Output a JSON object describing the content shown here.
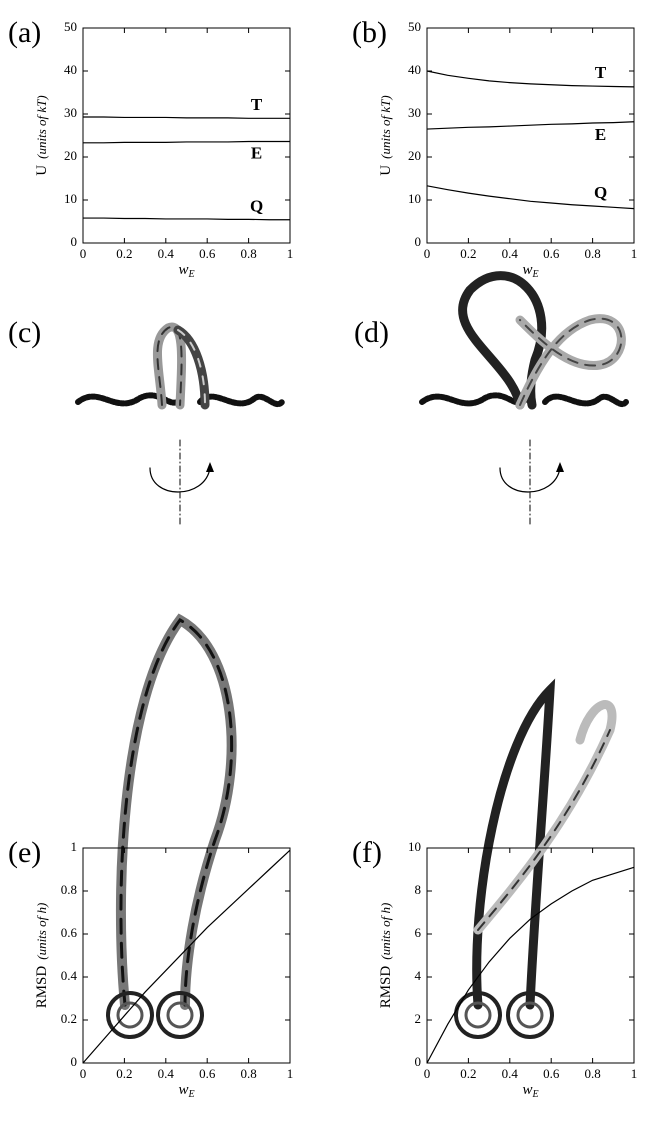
{
  "chart_data": [
    {
      "type": "line",
      "panel": "(a)",
      "ylabel": "U",
      "ylabel_unit": "(units of kT)",
      "xlabel": "w",
      "xlabel_sub": "E",
      "x": [
        0,
        0.1,
        0.2,
        0.3,
        0.4,
        0.5,
        0.6,
        0.7,
        0.8,
        0.9,
        1
      ],
      "xlim": [
        0,
        1
      ],
      "xticks": [
        0,
        0.2,
        0.4,
        0.6,
        0.8,
        1
      ],
      "ylim": [
        0,
        50
      ],
      "yticks": [
        0,
        10,
        20,
        30,
        40,
        50
      ],
      "series": [
        {
          "name": "T",
          "color": "#000000",
          "values": [
            29.3,
            29.3,
            29.2,
            29.2,
            29.2,
            29.1,
            29.1,
            29.1,
            29.0,
            29.0,
            29.0
          ]
        },
        {
          "name": "E",
          "color": "#000000",
          "values": [
            23.3,
            23.3,
            23.4,
            23.4,
            23.4,
            23.5,
            23.5,
            23.5,
            23.6,
            23.6,
            23.6
          ]
        },
        {
          "name": "Q",
          "color": "#000000",
          "values": [
            5.8,
            5.8,
            5.7,
            5.7,
            5.6,
            5.6,
            5.6,
            5.5,
            5.5,
            5.4,
            5.4
          ]
        }
      ]
    },
    {
      "type": "line",
      "panel": "(b)",
      "ylabel": "U",
      "ylabel_unit": "(units of kT)",
      "xlabel": "w",
      "xlabel_sub": "E",
      "x": [
        0,
        0.1,
        0.2,
        0.3,
        0.4,
        0.5,
        0.6,
        0.7,
        0.8,
        0.9,
        1
      ],
      "xlim": [
        0,
        1
      ],
      "xticks": [
        0,
        0.2,
        0.4,
        0.6,
        0.8,
        1
      ],
      "ylim": [
        0,
        50
      ],
      "yticks": [
        0,
        10,
        20,
        30,
        40,
        50
      ],
      "series": [
        {
          "name": "T",
          "color": "#000000",
          "values": [
            40.0,
            39.0,
            38.3,
            37.7,
            37.3,
            37.0,
            36.8,
            36.6,
            36.5,
            36.4,
            36.3
          ]
        },
        {
          "name": "E",
          "color": "#000000",
          "values": [
            26.5,
            26.7,
            26.9,
            27.0,
            27.2,
            27.4,
            27.6,
            27.7,
            27.9,
            28.0,
            28.2
          ]
        },
        {
          "name": "Q",
          "color": "#000000",
          "values": [
            13.3,
            12.4,
            11.6,
            10.9,
            10.3,
            9.7,
            9.3,
            8.9,
            8.6,
            8.3,
            8.0
          ]
        }
      ]
    },
    {
      "type": "line",
      "panel": "(e)",
      "ylabel": "RMSD",
      "ylabel_unit": "(units of h)",
      "xlabel": "w",
      "xlabel_sub": "E",
      "x": [
        0,
        0.1,
        0.2,
        0.3,
        0.4,
        0.5,
        0.6,
        0.7,
        0.8,
        0.9,
        1
      ],
      "xlim": [
        0,
        1
      ],
      "xticks": [
        0,
        0.2,
        0.4,
        0.6,
        0.8,
        1
      ],
      "ylim": [
        0,
        1
      ],
      "yticks": [
        0,
        0.2,
        0.4,
        0.6,
        0.8,
        1
      ],
      "series": [
        {
          "name": "RMSD",
          "color": "#000000",
          "values": [
            0,
            0.11,
            0.22,
            0.33,
            0.43,
            0.53,
            0.63,
            0.72,
            0.81,
            0.9,
            0.99
          ]
        }
      ]
    },
    {
      "type": "line",
      "panel": "(f)",
      "ylabel": "RMSD",
      "ylabel_unit": "(units of h)",
      "xlabel": "w",
      "xlabel_sub": "E",
      "x": [
        0,
        0.1,
        0.2,
        0.3,
        0.4,
        0.5,
        0.6,
        0.7,
        0.8,
        0.9,
        1
      ],
      "xlim": [
        0,
        1
      ],
      "xticks": [
        0,
        0.2,
        0.4,
        0.6,
        0.8,
        1
      ],
      "ylim": [
        0,
        10
      ],
      "yticks": [
        0,
        2,
        4,
        6,
        8,
        10
      ],
      "series": [
        {
          "name": "RMSD",
          "color": "#000000",
          "values": [
            0,
            1.8,
            3.4,
            4.7,
            5.8,
            6.7,
            7.4,
            8.0,
            8.5,
            8.8,
            9.1
          ]
        }
      ]
    }
  ],
  "figures": [
    "(c)",
    "(d)"
  ]
}
